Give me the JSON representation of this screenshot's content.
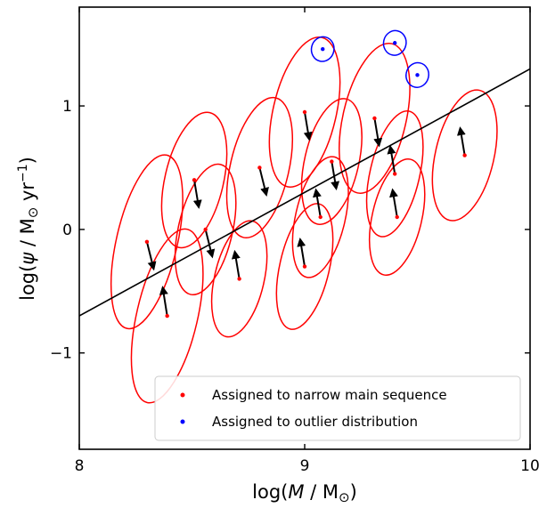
{
  "chart_data": {
    "type": "scatter",
    "xlabel": "log(M / M⊙)",
    "ylabel": "log(ψ / M⊙ yr⁻¹)",
    "xlim": [
      8.0,
      10.0
    ],
    "ylim": [
      -1.78,
      1.8
    ],
    "xticks": [
      8,
      9,
      10
    ],
    "xtick_labels": [
      "8",
      "9",
      "10"
    ],
    "yticks": [
      -1,
      0,
      1
    ],
    "ytick_labels": [
      "−1",
      "0",
      "1"
    ],
    "grid": false,
    "legend_position": "bottom-right",
    "colors": {
      "narrow": "#ff0000",
      "outlier": "#0000ff",
      "line": "#000000",
      "arrow": "#000000"
    },
    "fit_line": {
      "slope": 1.0,
      "intercept": -8.7,
      "x_range": [
        8.0,
        10.0
      ]
    },
    "series": [
      {
        "name": "Assigned to narrow main sequence",
        "color": "#ff0000",
        "points": [
          {
            "x": 8.3,
            "y": -0.1,
            "arrow_to": [
              8.33,
              -0.32
            ],
            "ellipse": {
              "rx": 0.135,
              "ry": 0.72,
              "tilt_deg": 13
            }
          },
          {
            "x": 8.39,
            "y": -0.7,
            "arrow_to": [
              8.37,
              -0.47
            ],
            "ellipse": {
              "rx": 0.135,
              "ry": 0.72,
              "tilt_deg": 13
            }
          },
          {
            "x": 8.51,
            "y": 0.4,
            "arrow_to": [
              8.53,
              0.18
            ],
            "ellipse": {
              "rx": 0.13,
              "ry": 0.56,
              "tilt_deg": 13
            }
          },
          {
            "x": 8.56,
            "y": 0.0,
            "arrow_to": [
              8.59,
              -0.22
            ],
            "ellipse": {
              "rx": 0.12,
              "ry": 0.54,
              "tilt_deg": 13
            }
          },
          {
            "x": 8.71,
            "y": -0.4,
            "arrow_to": [
              8.69,
              -0.18
            ],
            "ellipse": {
              "rx": 0.11,
              "ry": 0.48,
              "tilt_deg": 13
            }
          },
          {
            "x": 8.8,
            "y": 0.5,
            "arrow_to": [
              8.83,
              0.28
            ],
            "ellipse": {
              "rx": 0.13,
              "ry": 0.58,
              "tilt_deg": 13
            }
          },
          {
            "x": 9.0,
            "y": -0.3,
            "arrow_to": [
              8.98,
              -0.08
            ],
            "ellipse": {
              "rx": 0.11,
              "ry": 0.52,
              "tilt_deg": 13
            }
          },
          {
            "x": 9.0,
            "y": 0.95,
            "arrow_to": [
              9.02,
              0.73
            ],
            "ellipse": {
              "rx": 0.14,
              "ry": 0.62,
              "tilt_deg": 13
            }
          },
          {
            "x": 9.07,
            "y": 0.1,
            "arrow_to": [
              9.05,
              0.32
            ],
            "ellipse": {
              "rx": 0.11,
              "ry": 0.5,
              "tilt_deg": 13
            }
          },
          {
            "x": 9.12,
            "y": 0.55,
            "arrow_to": [
              9.14,
              0.33
            ],
            "ellipse": {
              "rx": 0.12,
              "ry": 0.52,
              "tilt_deg": 13
            }
          },
          {
            "x": 9.31,
            "y": 0.9,
            "arrow_to": [
              9.33,
              0.68
            ],
            "ellipse": {
              "rx": 0.14,
              "ry": 0.62,
              "tilt_deg": 13
            }
          },
          {
            "x": 9.41,
            "y": 0.1,
            "arrow_to": [
              9.39,
              0.32
            ],
            "ellipse": {
              "rx": 0.11,
              "ry": 0.48,
              "tilt_deg": 13
            }
          },
          {
            "x": 9.4,
            "y": 0.45,
            "arrow_to": [
              9.38,
              0.67
            ],
            "ellipse": {
              "rx": 0.11,
              "ry": 0.52,
              "tilt_deg": 13
            }
          },
          {
            "x": 9.71,
            "y": 0.6,
            "arrow_to": [
              9.69,
              0.82
            ],
            "ellipse": {
              "rx": 0.13,
              "ry": 0.54,
              "tilt_deg": 13
            }
          }
        ]
      },
      {
        "name": "Assigned to outlier distribution",
        "color": "#0000ff",
        "points": [
          {
            "x": 9.08,
            "y": 1.46,
            "ellipse": {
              "rx": 0.05,
              "ry": 0.1,
              "tilt_deg": 13
            }
          },
          {
            "x": 9.4,
            "y": 1.51,
            "ellipse": {
              "rx": 0.05,
              "ry": 0.1,
              "tilt_deg": 13
            }
          },
          {
            "x": 9.5,
            "y": 1.25,
            "ellipse": {
              "rx": 0.05,
              "ry": 0.1,
              "tilt_deg": 13
            }
          }
        ]
      }
    ]
  }
}
